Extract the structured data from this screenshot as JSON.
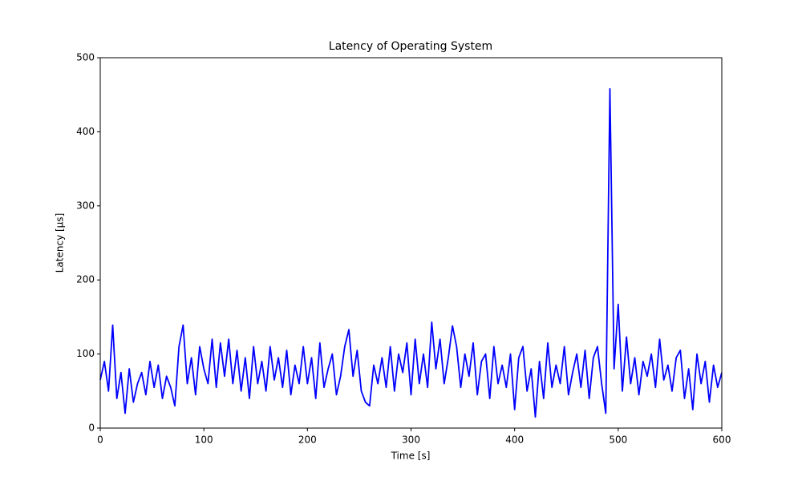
{
  "chart_data": {
    "type": "line",
    "title": "Latency of Operating System",
    "x_label": "Time [s]",
    "y_label": "Latency [µs]",
    "color": "#0000ff",
    "xlim": [
      0,
      600
    ],
    "ylim": [
      0,
      500
    ],
    "xticks": [
      0,
      100,
      200,
      300,
      400,
      500,
      600
    ],
    "yticks": [
      0,
      100,
      200,
      300,
      400,
      500
    ],
    "grid": false,
    "x": [
      0,
      4,
      8,
      12,
      16,
      20,
      24,
      28,
      32,
      36,
      40,
      44,
      48,
      52,
      56,
      60,
      64,
      68,
      72,
      76,
      80,
      84,
      88,
      92,
      96,
      100,
      104,
      108,
      112,
      116,
      120,
      124,
      128,
      132,
      136,
      140,
      144,
      148,
      152,
      156,
      160,
      164,
      168,
      172,
      176,
      180,
      184,
      188,
      192,
      196,
      200,
      204,
      208,
      212,
      216,
      220,
      224,
      228,
      232,
      236,
      240,
      244,
      248,
      252,
      256,
      260,
      264,
      268,
      272,
      276,
      280,
      284,
      288,
      292,
      296,
      300,
      304,
      308,
      312,
      316,
      320,
      324,
      328,
      332,
      336,
      340,
      344,
      348,
      352,
      356,
      360,
      364,
      368,
      372,
      376,
      380,
      384,
      388,
      392,
      396,
      400,
      404,
      408,
      412,
      416,
      420,
      424,
      428,
      432,
      436,
      440,
      444,
      448,
      452,
      456,
      460,
      464,
      468,
      472,
      476,
      480,
      484,
      488,
      492,
      496,
      500,
      504,
      508,
      512,
      516,
      520,
      524,
      528,
      532,
      536,
      540,
      544,
      548,
      552,
      556,
      560,
      564,
      568,
      572,
      576,
      580,
      584,
      588,
      592,
      596,
      600
    ],
    "values": [
      65,
      90,
      50,
      139,
      40,
      75,
      20,
      80,
      35,
      60,
      75,
      45,
      90,
      55,
      85,
      40,
      70,
      55,
      30,
      110,
      139,
      60,
      95,
      45,
      110,
      80,
      60,
      120,
      55,
      115,
      70,
      120,
      60,
      105,
      50,
      95,
      40,
      110,
      60,
      90,
      50,
      110,
      65,
      95,
      55,
      105,
      45,
      85,
      60,
      110,
      60,
      95,
      40,
      115,
      55,
      80,
      100,
      45,
      70,
      110,
      133,
      70,
      105,
      50,
      35,
      30,
      85,
      60,
      95,
      55,
      110,
      50,
      100,
      75,
      115,
      45,
      120,
      60,
      100,
      55,
      143,
      80,
      120,
      60,
      95,
      138,
      110,
      55,
      100,
      70,
      115,
      45,
      90,
      100,
      40,
      110,
      60,
      85,
      55,
      100,
      25,
      95,
      110,
      50,
      80,
      15,
      90,
      40,
      115,
      55,
      85,
      60,
      110,
      45,
      75,
      100,
      55,
      105,
      40,
      95,
      110,
      60,
      20,
      458,
      80,
      167,
      50,
      123,
      60,
      95,
      45,
      90,
      70,
      100,
      55,
      120,
      65,
      85,
      50,
      95,
      105,
      40,
      80,
      25,
      100,
      60,
      90,
      35,
      85,
      55,
      75
    ]
  }
}
